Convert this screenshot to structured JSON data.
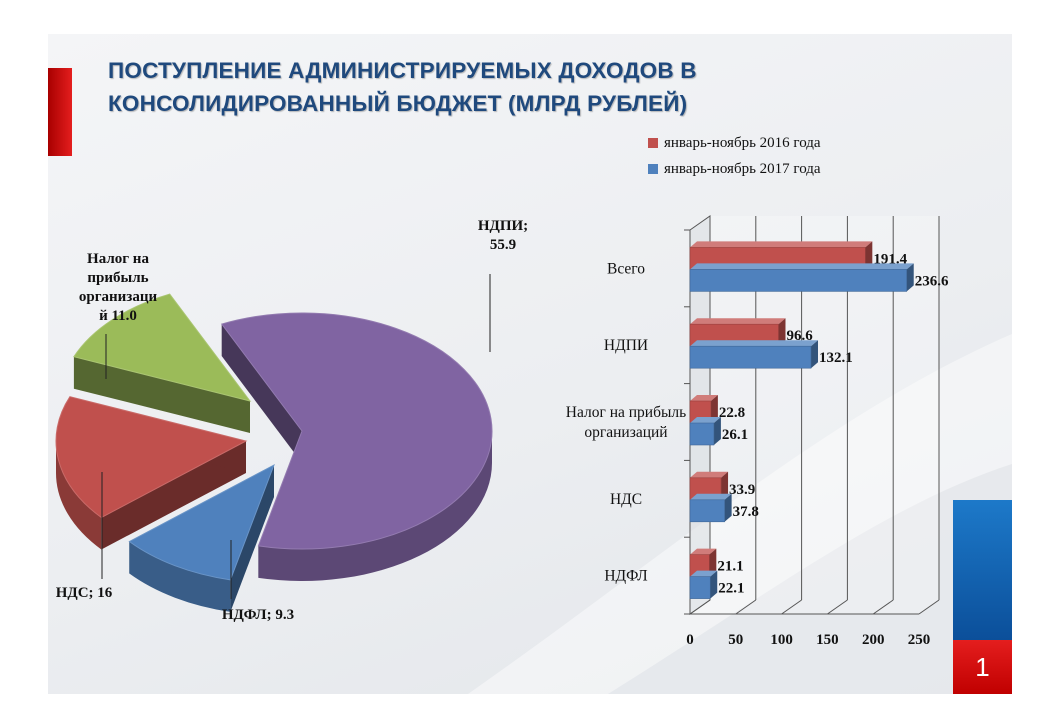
{
  "title_lines": [
    "ПОСТУПЛЕНИЕ АДМИНИСТРИРУЕМЫХ ДОХОДОВ В",
    "КОНСОЛИДИРОВАННЫЙ БЮДЖЕТ (МЛРД РУБЛЕЙ)"
  ],
  "page_number": "1",
  "colors": {
    "title": "#1f497d",
    "series_2016": "#c0504d",
    "series_2017": "#4f81bd",
    "pie_ndpi": "#8064a2",
    "pie_nds": "#c0504d",
    "pie_profit": "#9bbb59",
    "pie_ndfl": "#4f81bd"
  },
  "chart_data": [
    {
      "type": "pie",
      "slices": [
        {
          "name": "НДПИ",
          "value": 55.9,
          "label_lines": [
            "НДПИ;",
            "55.9"
          ]
        },
        {
          "name": "НДФЛ",
          "value": 9.3,
          "label_lines": [
            "НДФЛ; 9.3"
          ]
        },
        {
          "name": "НДС",
          "value": 16,
          "label_lines": [
            "НДС; 16"
          ]
        },
        {
          "name": "Налог на прибыль организаций",
          "value": 11.0,
          "label_lines": [
            "Налог на",
            "прибыль",
            "организаци",
            "й 11.0"
          ]
        }
      ]
    },
    {
      "type": "bar",
      "orientation": "horizontal",
      "categories": [
        "Всего",
        "НДПИ",
        "Налог на прибыль организаций",
        "НДС",
        "НДФЛ"
      ],
      "category_label_lines": [
        [
          "Всего"
        ],
        [
          "НДПИ"
        ],
        [
          "Налог на прибыль",
          "организаций"
        ],
        [
          "НДС"
        ],
        [
          "НДФЛ"
        ]
      ],
      "series": [
        {
          "name": "январь-ноябрь 2016 года",
          "values": [
            191.4,
            96.6,
            22.8,
            33.9,
            21.1
          ]
        },
        {
          "name": "январь-ноябрь 2017 года",
          "values": [
            236.6,
            132.1,
            26.1,
            37.8,
            22.1
          ]
        }
      ],
      "xlim": [
        0,
        250
      ],
      "xticks": [
        0,
        50,
        100,
        150,
        200,
        250
      ],
      "legend": "top-right"
    }
  ]
}
